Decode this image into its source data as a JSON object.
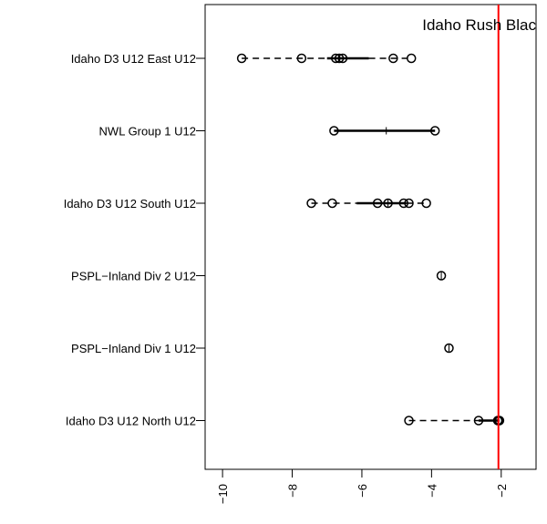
{
  "chart_data": {
    "type": "boxplot",
    "orientation": "horizontal",
    "title": "",
    "xlabel": "",
    "ylabel": "",
    "xlim": [
      -10.5,
      -1.0
    ],
    "xticks": [
      -10,
      -8,
      -6,
      -4,
      -2
    ],
    "xtick_labels": [
      "−10",
      "−8",
      "−6",
      "−4",
      "−2"
    ],
    "reference_line": {
      "value": -2.08,
      "label": "Idaho Rush Blac",
      "color": "#ff0000"
    },
    "groups": [
      {
        "label": "Idaho D3 U12 East U12",
        "points": [
          -9.45,
          -7.73,
          -6.75,
          -6.65,
          -6.55,
          -5.1,
          -4.58
        ],
        "whisker_low": -9.45,
        "q1": -7.0,
        "median": -6.67,
        "q3": -5.8,
        "whisker_high": -4.58
      },
      {
        "label": "NWL Group 1 U12",
        "points": [
          -6.8,
          -3.9
        ],
        "whisker_low": -6.8,
        "q1": -6.8,
        "median": -5.3,
        "q3": -3.9,
        "whisker_high": -3.9
      },
      {
        "label": "Idaho D3 U12 South U12",
        "points": [
          -7.45,
          -6.85,
          -5.55,
          -5.25,
          -4.8,
          -4.65,
          -4.15
        ],
        "whisker_low": -7.45,
        "q1": -6.15,
        "median": -5.25,
        "q3": -4.72,
        "whisker_high": -4.15
      },
      {
        "label": "PSPL−Inland Div 2 U12",
        "points": [
          -3.72
        ],
        "whisker_low": -3.72,
        "q1": -3.72,
        "median": -3.72,
        "q3": -3.72,
        "whisker_high": -3.72
      },
      {
        "label": "PSPL−Inland Div 1 U12",
        "points": [
          -3.5
        ],
        "whisker_low": -3.5,
        "q1": -3.5,
        "median": -3.5,
        "q3": -3.5,
        "whisker_high": -3.5
      },
      {
        "label": "Idaho D3 U12 North U12",
        "points": [
          -4.65,
          -2.65,
          -2.1,
          -2.07,
          -2.05
        ],
        "whisker_low": -4.65,
        "q1": -2.65,
        "median": -2.1,
        "q3": -2.05,
        "whisker_high": -2.05
      }
    ]
  }
}
